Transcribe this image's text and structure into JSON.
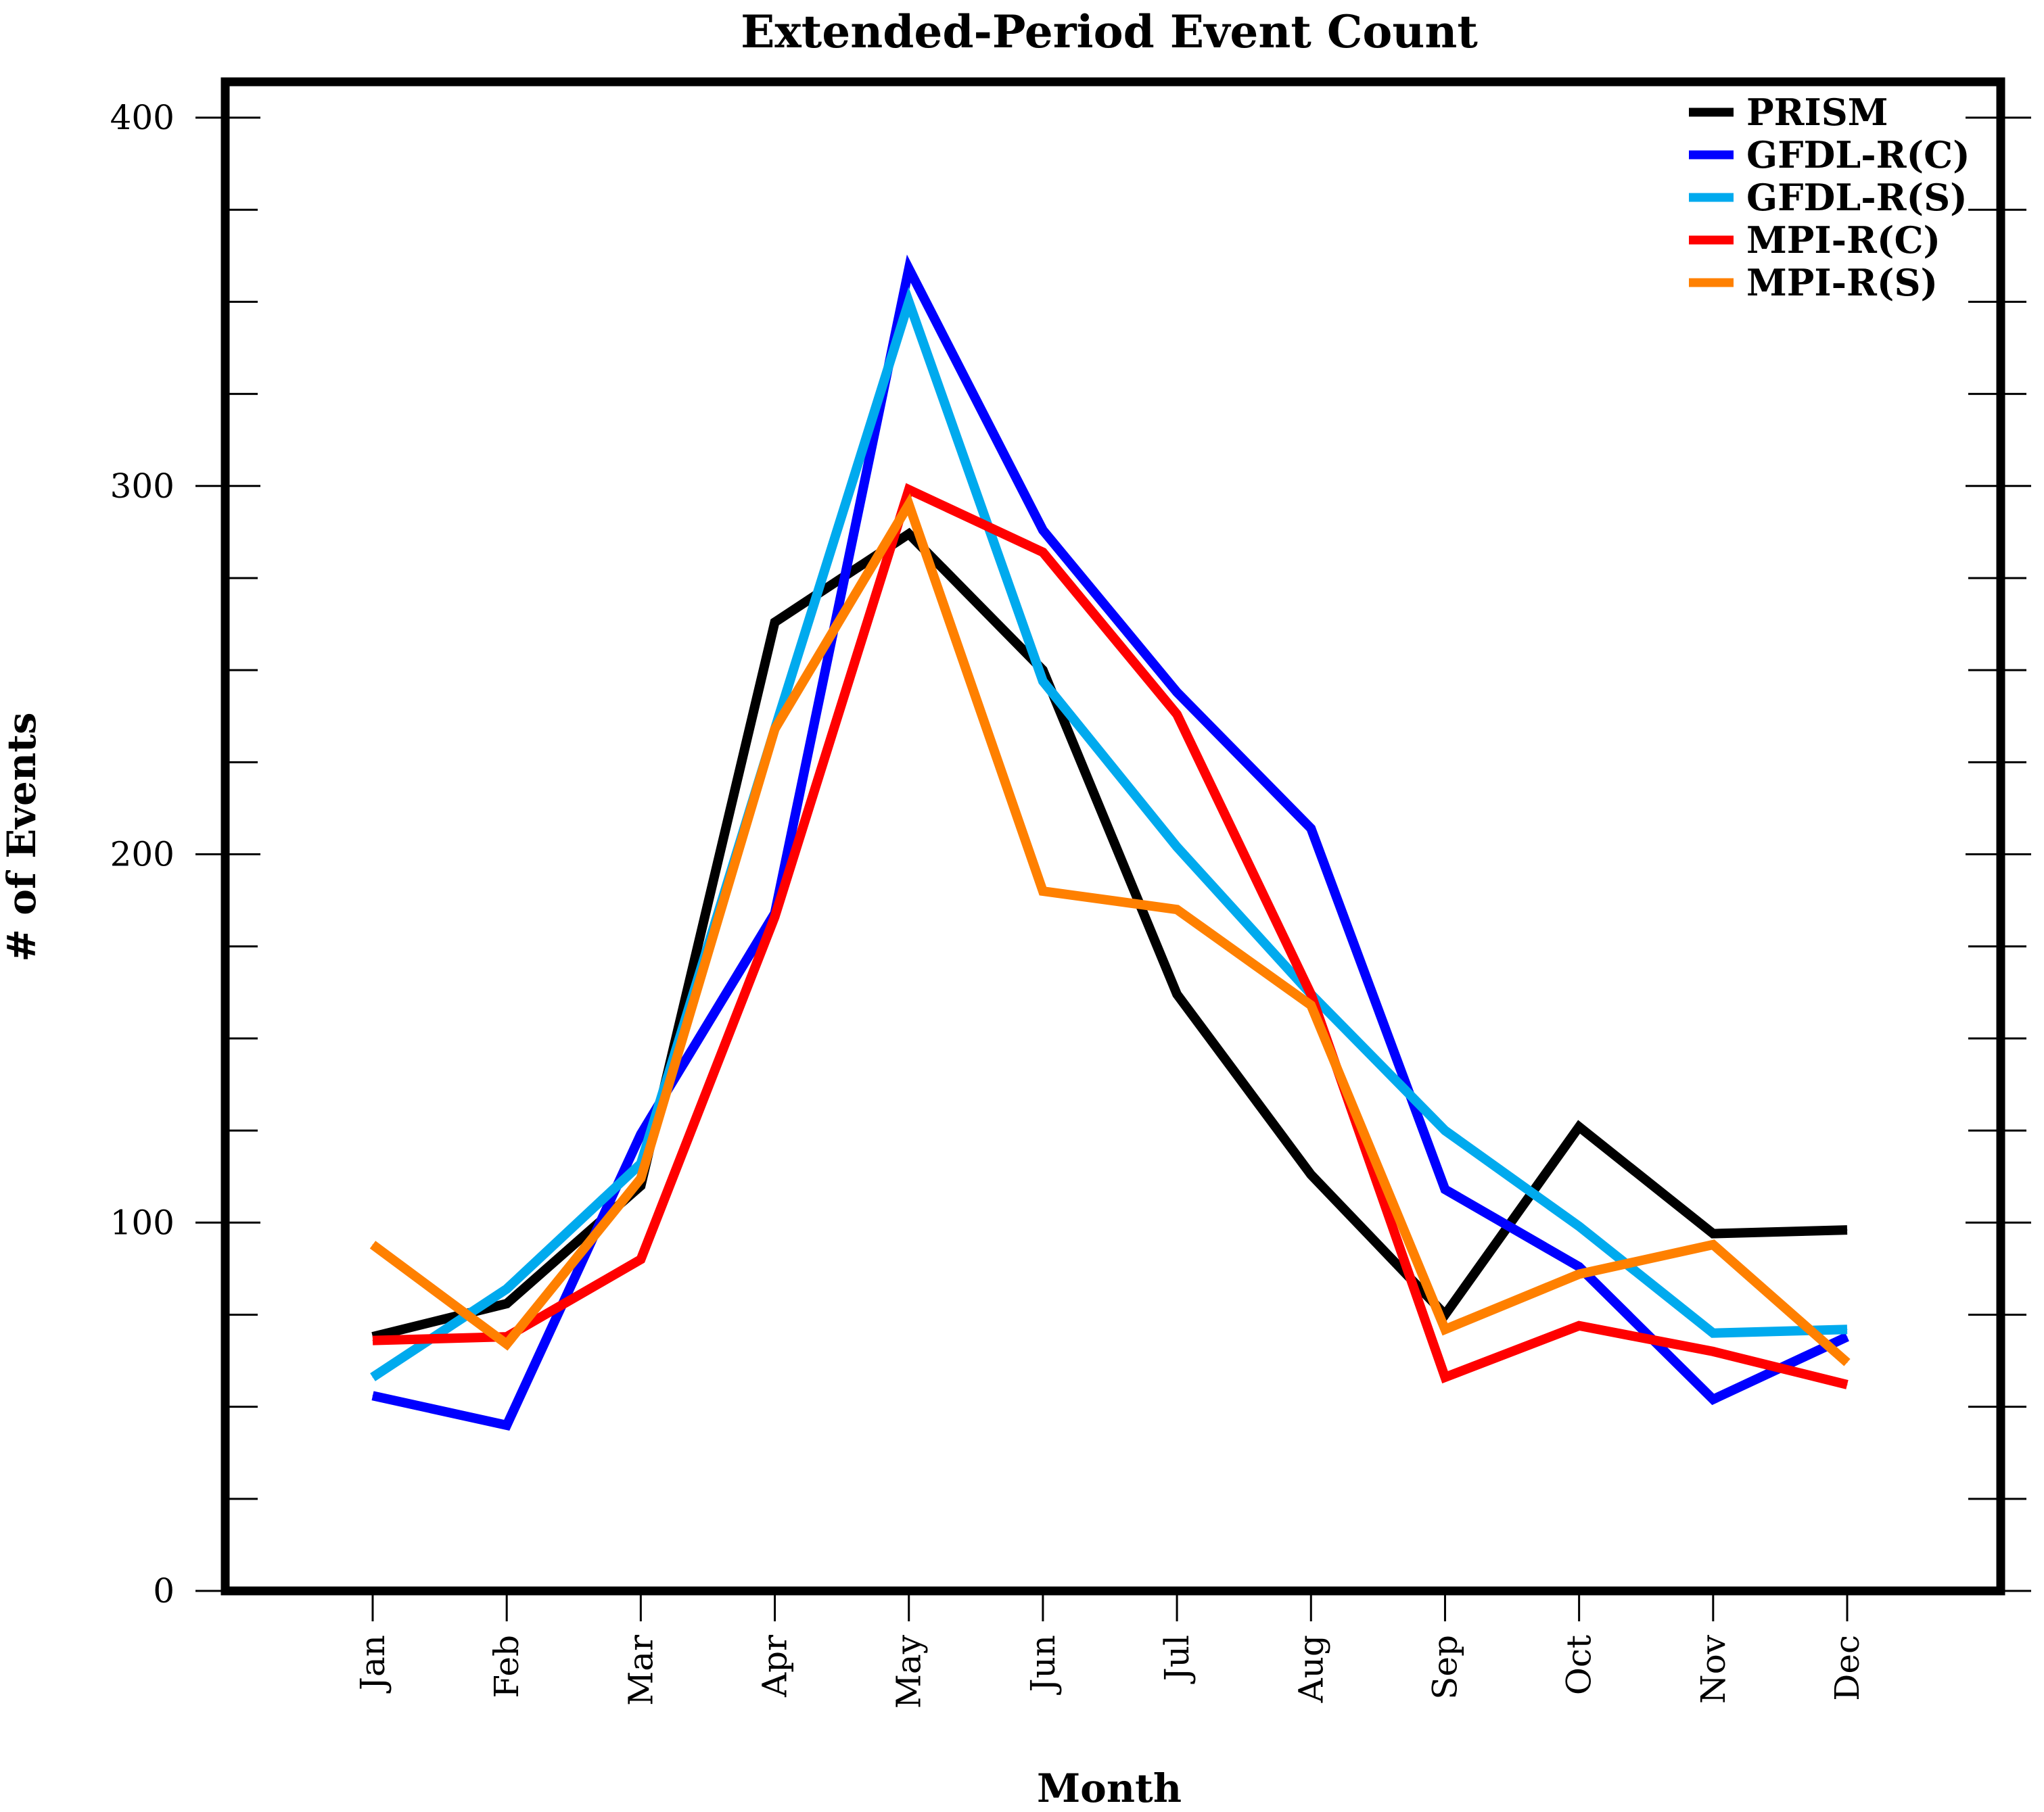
{
  "chart_data": {
    "type": "line",
    "title": "Extended-Period Event Count",
    "xlabel": "Month",
    "ylabel": "# of Events",
    "categories": [
      "Jan",
      "Feb",
      "Mar",
      "Apr",
      "May",
      "Jun",
      "Jul",
      "Aug",
      "Sep",
      "Oct",
      "Nov",
      "Dec"
    ],
    "ylim": [
      0,
      400
    ],
    "yticks": [
      0,
      100,
      200,
      300,
      400
    ],
    "ytick_labels": [
      "0",
      "100",
      "200",
      "300",
      "400"
    ],
    "yminor_step": 25,
    "grid": false,
    "legend_position": "top-right",
    "series": [
      {
        "name": "PRISM",
        "color": "#000000",
        "values": [
          69,
          78,
          110,
          263,
          287,
          250,
          162,
          113,
          75,
          126,
          97,
          98
        ]
      },
      {
        "name": "GFDL-R(C)",
        "color": "#0000ff",
        "values": [
          53,
          45,
          124,
          184,
          359,
          288,
          244,
          207,
          109,
          88,
          52,
          69
        ]
      },
      {
        "name": "GFDL-R(S)",
        "color": "#00aaee",
        "values": [
          58,
          82,
          116,
          234,
          350,
          247,
          202,
          162,
          125,
          99,
          70,
          71
        ]
      },
      {
        "name": "MPI-R(C)",
        "color": "#ff0000",
        "values": [
          68,
          69,
          90,
          183,
          299,
          282,
          238,
          162,
          58,
          72,
          65,
          56
        ]
      },
      {
        "name": "MPI-R(S)",
        "color": "#ff8000",
        "values": [
          94,
          67,
          112,
          234,
          295,
          190,
          185,
          159,
          71,
          86,
          94,
          62
        ]
      }
    ]
  }
}
